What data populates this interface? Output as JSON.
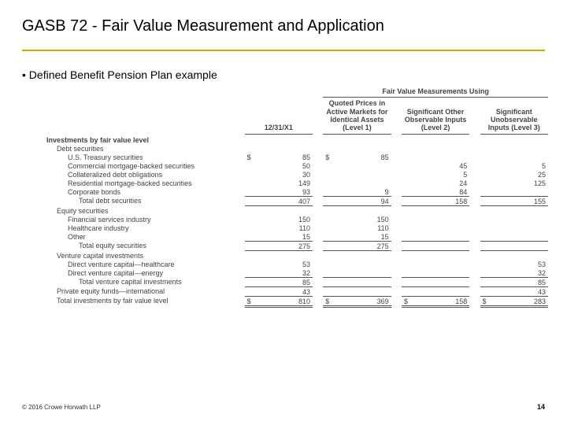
{
  "title": "GASB 72 - Fair Value Measurement and Application",
  "bullet_text": "Defined Benefit Pension Plan example",
  "rule_color": "#d9a400",
  "footer": "© 2016 Crowe Horwath LLP",
  "page_number": "14",
  "table": {
    "superheader": "Fair Value Measurements Using",
    "columns": [
      "12/31/X1",
      "Quoted Prices in Active Markets for Identical Assets (Level 1)",
      "Significant Other Observable Inputs (Level 2)",
      "Significant Unobservable Inputs (Level 3)"
    ],
    "section_header": "Investments by fair value level",
    "groups": [
      {
        "label": "Debt securities",
        "rows": [
          {
            "label": "U.S. Treasury securities",
            "v": [
              "85",
              "85",
              "",
              ""
            ],
            "cur": true
          },
          {
            "label": "Commercial mortgage-backed securities",
            "v": [
              "50",
              "",
              "45",
              "5"
            ]
          },
          {
            "label": "Collateralized debt obligations",
            "v": [
              "30",
              "",
              "5",
              "25"
            ]
          },
          {
            "label": "Residential mortgage-backed securities",
            "v": [
              "149",
              "",
              "24",
              "125"
            ]
          },
          {
            "label": "Corporate bonds",
            "v": [
              "93",
              "9",
              "84",
              ""
            ]
          }
        ],
        "subtotal": {
          "label": "Total debt securities",
          "v": [
            "407",
            "94",
            "158",
            "155"
          ]
        }
      },
      {
        "label": "Equity securities",
        "rows": [
          {
            "label": "Financial services industry",
            "v": [
              "150",
              "150",
              "",
              ""
            ]
          },
          {
            "label": "Healthcare industry",
            "v": [
              "110",
              "110",
              "",
              ""
            ]
          },
          {
            "label": "Other",
            "v": [
              "15",
              "15",
              "",
              ""
            ]
          }
        ],
        "subtotal": {
          "label": "Total equity securities",
          "v": [
            "275",
            "275",
            "",
            ""
          ]
        }
      },
      {
        "label": "Venture capital investments",
        "rows": [
          {
            "label": "Direct venture capital—healthcare",
            "v": [
              "53",
              "",
              "",
              "53"
            ]
          },
          {
            "label": "Direct venture capital—energy",
            "v": [
              "32",
              "",
              "",
              "32"
            ]
          }
        ],
        "subtotal": {
          "label": "Total venture capital investments",
          "v": [
            "85",
            "",
            "",
            "85"
          ]
        }
      }
    ],
    "extra_row": {
      "label": "Private equity funds—international",
      "v": [
        "43",
        "",
        "",
        "43"
      ]
    },
    "grand_total": {
      "label": "Total investments by fair value level",
      "v": [
        "810",
        "369",
        "158",
        "283"
      ],
      "cur": true
    }
  }
}
